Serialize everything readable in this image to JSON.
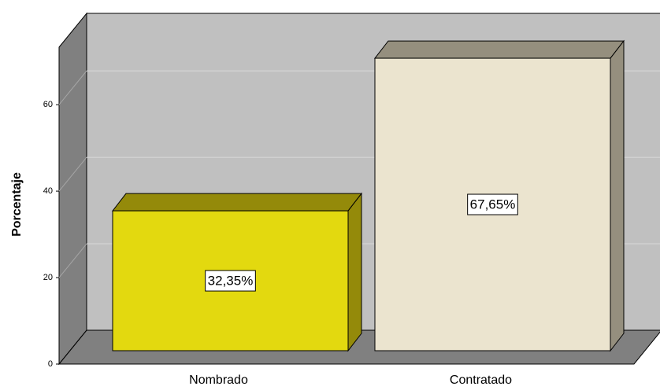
{
  "chart_data": {
    "type": "bar3d",
    "y_label": "Porcentaje",
    "categories": [
      "Nombrado",
      "Contratado"
    ],
    "values": [
      32.35,
      67.65
    ],
    "value_labels": [
      "32,35%",
      "67,65%"
    ],
    "colors": [
      "#e3d90f",
      "#ebe4cf"
    ],
    "side_colors": [
      "#948a0a",
      "#958f7e"
    ],
    "ylim": [
      0,
      73.3
    ],
    "yticks": [
      0,
      20,
      40,
      60
    ],
    "grid": true
  }
}
